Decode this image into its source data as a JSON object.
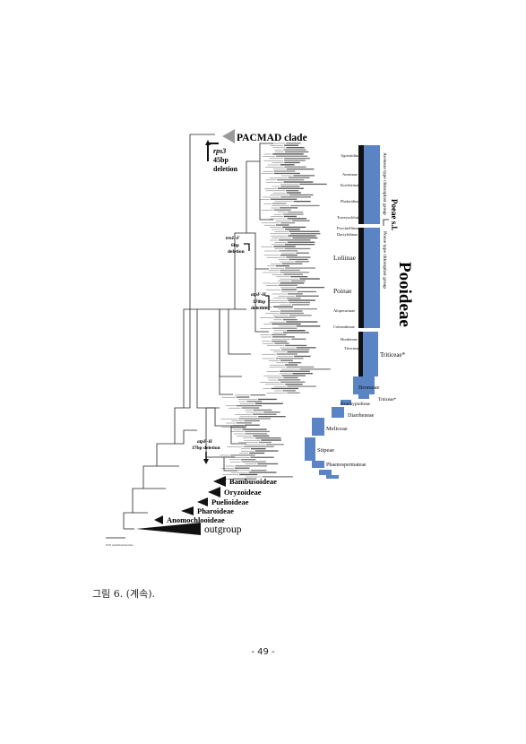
{
  "figure": {
    "big_labels": {
      "pacmad": "PACMAD clade",
      "pooideae": "Pooideae",
      "poeae_sl": "Poeae s.l.",
      "outgroup": "outgroup"
    },
    "subfamilies": [
      "Bambusoideae",
      "Oryzoideae",
      "Puelioideae",
      "Pharoideae",
      "Anomochlooideae"
    ],
    "deletions": {
      "rps3": [
        "rps3",
        "45bp",
        "deletion"
      ],
      "trnlf": [
        "trnL-F",
        "6bp",
        "deletion"
      ],
      "atpf_upper": [
        "atpF-H",
        "370bp",
        "deletion"
      ],
      "atpf_lower": [
        "atpF-H",
        "37bp deletion"
      ]
    },
    "chloroplast_groups": {
      "avenae": "Aveneae type chloroplast group",
      "poeae": "Poeae type chloroplast group"
    },
    "tribes": [
      "Agrostidinae",
      "Aveninae",
      "Koeleriinae",
      "Phalaridinae",
      "Torreyochloinae",
      "Puccinelliinae",
      "Dactylidinae",
      "Loliinae",
      "Poinae",
      "Alopecurinae",
      "Coleanthinae",
      "Hordeinae",
      "Triticinae",
      "Bromeae",
      "Brachypodieae",
      "Diarrheneae",
      "Meliceae",
      "Stipeae",
      "Phaenospermateae"
    ],
    "triticeae": "Triticeae*",
    "triticeae2": "Triticeae*",
    "scale": "0.05 substitutions/site"
  },
  "caption": "그림 6. (계속).",
  "page_number": "- 49 -"
}
